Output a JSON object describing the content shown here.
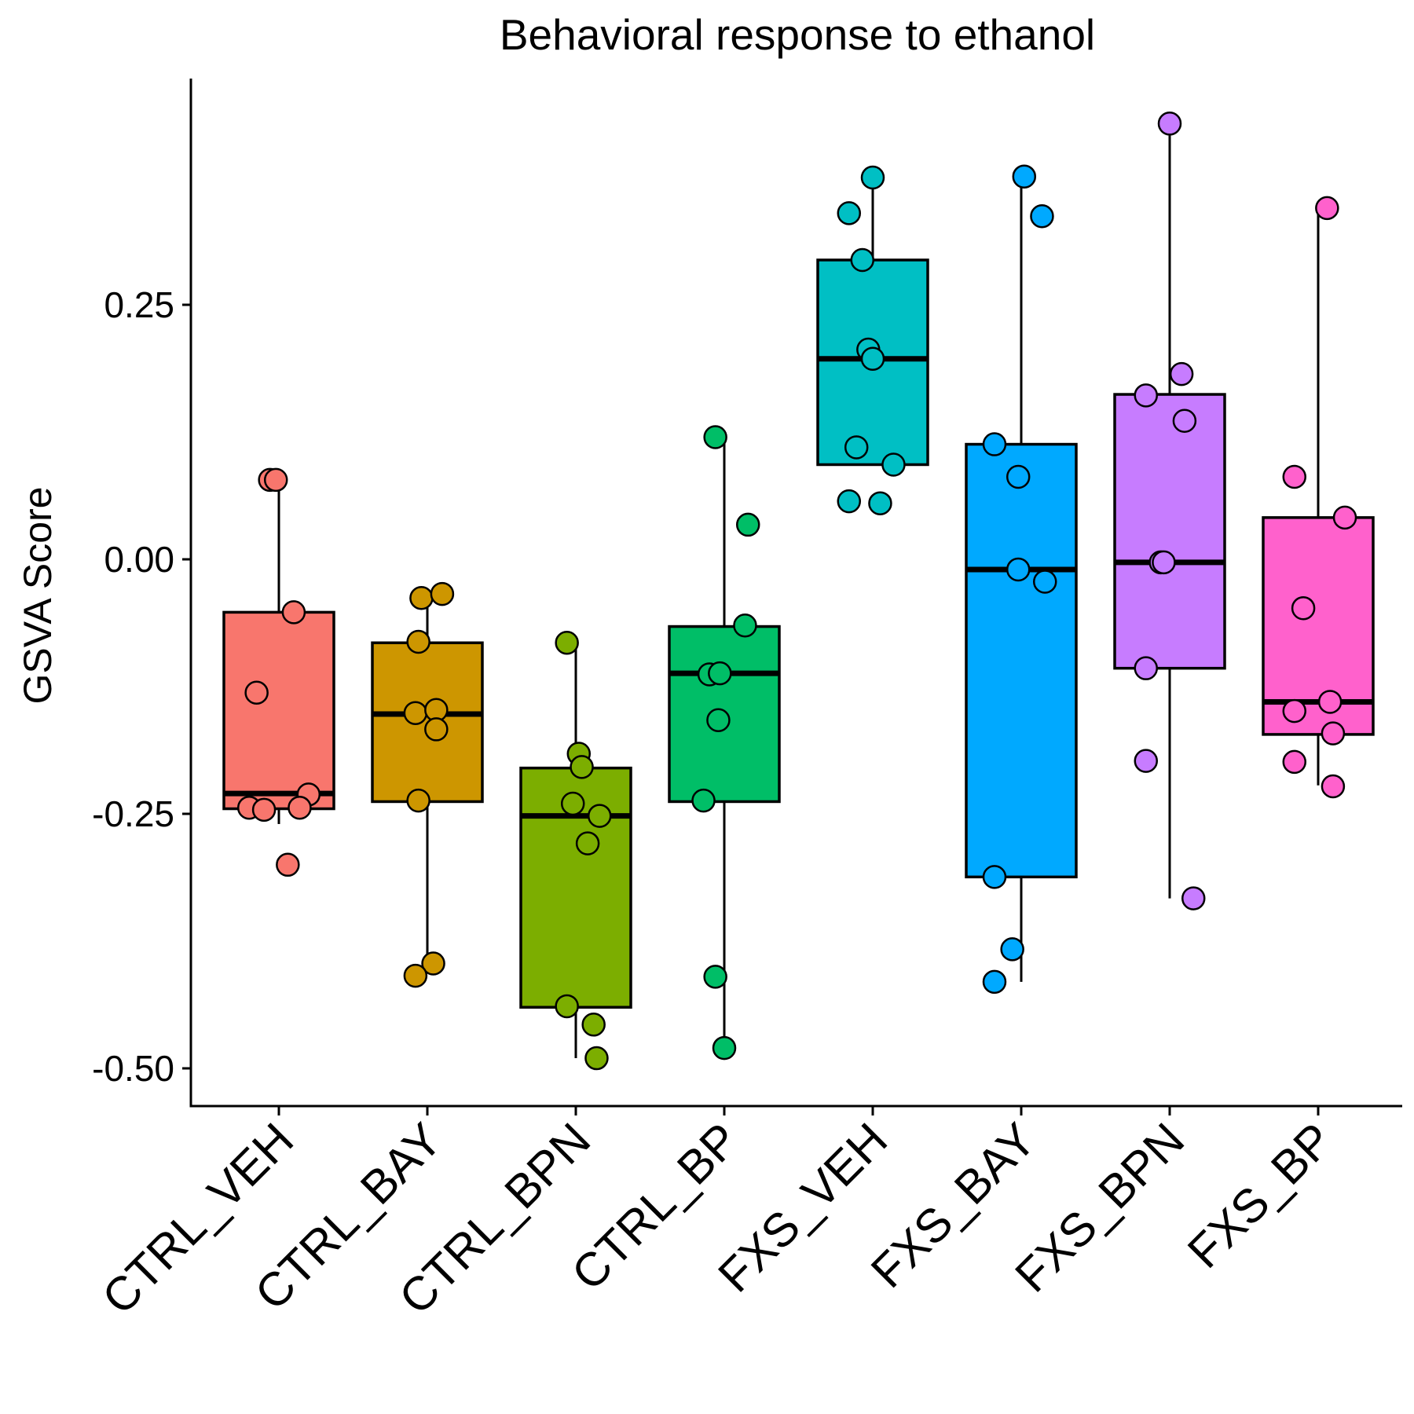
{
  "chart_data": {
    "type": "box",
    "title": "Behavioral response to ethanol",
    "xlabel": "",
    "ylabel": "GSVA Score",
    "ylim": [
      -0.54,
      0.47
    ],
    "yticks": [
      0.25,
      0.0,
      -0.25,
      -0.5
    ],
    "ytick_labels": [
      "0.25",
      "0.00",
      "-0.25",
      "-0.50"
    ],
    "categories": [
      "CTRL_VEH",
      "CTRL_BAY",
      "CTRL_BPN",
      "CTRL_BP",
      "FXS_VEH",
      "FXS_BAY",
      "FXS_BPN",
      "FXS_BP"
    ],
    "colors": [
      "#F8766D",
      "#CD9600",
      "#7CAE00",
      "#00BE67",
      "#00BFC4",
      "#00A9FF",
      "#C77CFF",
      "#FF61CC"
    ],
    "boxes": [
      {
        "q1": -0.245,
        "median": -0.23,
        "q3": -0.052,
        "whisker_low": -0.26,
        "whisker_high": 0.08
      },
      {
        "q1": -0.238,
        "median": -0.152,
        "q3": -0.082,
        "whisker_low": -0.405,
        "whisker_high": -0.035
      },
      {
        "q1": -0.44,
        "median": -0.252,
        "q3": -0.205,
        "whisker_low": -0.49,
        "whisker_high": -0.082
      },
      {
        "q1": -0.238,
        "median": -0.112,
        "q3": -0.066,
        "whisker_low": -0.47,
        "whisker_high": 0.12
      },
      {
        "q1": 0.093,
        "median": 0.197,
        "q3": 0.294,
        "whisker_low": 0.093,
        "whisker_high": 0.375
      },
      {
        "q1": -0.312,
        "median": -0.01,
        "q3": 0.113,
        "whisker_low": -0.415,
        "whisker_high": 0.375
      },
      {
        "q1": -0.107,
        "median": -0.003,
        "q3": 0.162,
        "whisker_low": -0.333,
        "whisker_high": 0.428
      },
      {
        "q1": -0.172,
        "median": -0.14,
        "q3": 0.041,
        "whisker_low": -0.222,
        "whisker_high": 0.345
      }
    ],
    "points": [
      {
        "group": 0,
        "jitter": -0.06,
        "value": 0.078
      },
      {
        "group": 0,
        "jitter": -0.02,
        "value": 0.078
      },
      {
        "group": 0,
        "jitter": 0.1,
        "value": -0.052
      },
      {
        "group": 0,
        "jitter": -0.15,
        "value": -0.131
      },
      {
        "group": 0,
        "jitter": 0.2,
        "value": -0.231
      },
      {
        "group": 0,
        "jitter": -0.2,
        "value": -0.244
      },
      {
        "group": 0,
        "jitter": -0.1,
        "value": -0.246
      },
      {
        "group": 0,
        "jitter": 0.14,
        "value": -0.244
      },
      {
        "group": 0,
        "jitter": 0.06,
        "value": -0.3
      },
      {
        "group": 1,
        "jitter": -0.04,
        "value": -0.038
      },
      {
        "group": 1,
        "jitter": 0.1,
        "value": -0.034
      },
      {
        "group": 1,
        "jitter": -0.06,
        "value": -0.081
      },
      {
        "group": 1,
        "jitter": -0.08,
        "value": -0.151
      },
      {
        "group": 1,
        "jitter": 0.06,
        "value": -0.148
      },
      {
        "group": 1,
        "jitter": 0.06,
        "value": -0.167
      },
      {
        "group": 1,
        "jitter": -0.06,
        "value": -0.237
      },
      {
        "group": 1,
        "jitter": 0.04,
        "value": -0.397
      },
      {
        "group": 1,
        "jitter": -0.08,
        "value": -0.409
      },
      {
        "group": 2,
        "jitter": -0.06,
        "value": -0.082
      },
      {
        "group": 2,
        "jitter": 0.02,
        "value": -0.191
      },
      {
        "group": 2,
        "jitter": 0.04,
        "value": -0.204
      },
      {
        "group": 2,
        "jitter": -0.02,
        "value": -0.24
      },
      {
        "group": 2,
        "jitter": 0.16,
        "value": -0.252
      },
      {
        "group": 2,
        "jitter": 0.08,
        "value": -0.279
      },
      {
        "group": 2,
        "jitter": -0.06,
        "value": -0.439
      },
      {
        "group": 2,
        "jitter": 0.12,
        "value": -0.457
      },
      {
        "group": 2,
        "jitter": 0.14,
        "value": -0.49
      },
      {
        "group": 3,
        "jitter": -0.06,
        "value": 0.12
      },
      {
        "group": 3,
        "jitter": 0.16,
        "value": 0.034
      },
      {
        "group": 3,
        "jitter": 0.14,
        "value": -0.065
      },
      {
        "group": 3,
        "jitter": -0.1,
        "value": -0.113
      },
      {
        "group": 3,
        "jitter": -0.03,
        "value": -0.112
      },
      {
        "group": 3,
        "jitter": -0.04,
        "value": -0.158
      },
      {
        "group": 3,
        "jitter": -0.14,
        "value": -0.237
      },
      {
        "group": 3,
        "jitter": -0.06,
        "value": -0.41
      },
      {
        "group": 3,
        "jitter": 0.0,
        "value": -0.48
      },
      {
        "group": 4,
        "jitter": 0.0,
        "value": 0.375
      },
      {
        "group": 4,
        "jitter": -0.16,
        "value": 0.34
      },
      {
        "group": 4,
        "jitter": -0.07,
        "value": 0.294
      },
      {
        "group": 4,
        "jitter": -0.03,
        "value": 0.206
      },
      {
        "group": 4,
        "jitter": 0.0,
        "value": 0.197
      },
      {
        "group": 4,
        "jitter": -0.11,
        "value": 0.11
      },
      {
        "group": 4,
        "jitter": 0.14,
        "value": 0.093
      },
      {
        "group": 4,
        "jitter": -0.16,
        "value": 0.057
      },
      {
        "group": 4,
        "jitter": 0.05,
        "value": 0.055
      },
      {
        "group": 5,
        "jitter": 0.02,
        "value": 0.376
      },
      {
        "group": 5,
        "jitter": 0.14,
        "value": 0.337
      },
      {
        "group": 5,
        "jitter": -0.18,
        "value": 0.113
      },
      {
        "group": 5,
        "jitter": -0.02,
        "value": 0.081
      },
      {
        "group": 5,
        "jitter": -0.02,
        "value": -0.01
      },
      {
        "group": 5,
        "jitter": 0.16,
        "value": -0.022
      },
      {
        "group": 5,
        "jitter": -0.18,
        "value": -0.312
      },
      {
        "group": 5,
        "jitter": -0.06,
        "value": -0.383
      },
      {
        "group": 5,
        "jitter": -0.18,
        "value": -0.415
      },
      {
        "group": 6,
        "jitter": 0.0,
        "value": 0.428
      },
      {
        "group": 6,
        "jitter": 0.08,
        "value": 0.182
      },
      {
        "group": 6,
        "jitter": -0.16,
        "value": 0.161
      },
      {
        "group": 6,
        "jitter": 0.1,
        "value": 0.136
      },
      {
        "group": 6,
        "jitter": -0.06,
        "value": -0.003
      },
      {
        "group": 6,
        "jitter": -0.04,
        "value": -0.003
      },
      {
        "group": 6,
        "jitter": -0.16,
        "value": -0.107
      },
      {
        "group": 6,
        "jitter": -0.16,
        "value": -0.198
      },
      {
        "group": 6,
        "jitter": 0.16,
        "value": -0.333
      },
      {
        "group": 7,
        "jitter": 0.06,
        "value": 0.345
      },
      {
        "group": 7,
        "jitter": -0.16,
        "value": 0.081
      },
      {
        "group": 7,
        "jitter": 0.18,
        "value": 0.041
      },
      {
        "group": 7,
        "jitter": -0.1,
        "value": -0.048
      },
      {
        "group": 7,
        "jitter": 0.08,
        "value": -0.14
      },
      {
        "group": 7,
        "jitter": -0.16,
        "value": -0.149
      },
      {
        "group": 7,
        "jitter": 0.1,
        "value": -0.171
      },
      {
        "group": 7,
        "jitter": -0.16,
        "value": -0.199
      },
      {
        "group": 7,
        "jitter": 0.1,
        "value": -0.223
      }
    ]
  }
}
